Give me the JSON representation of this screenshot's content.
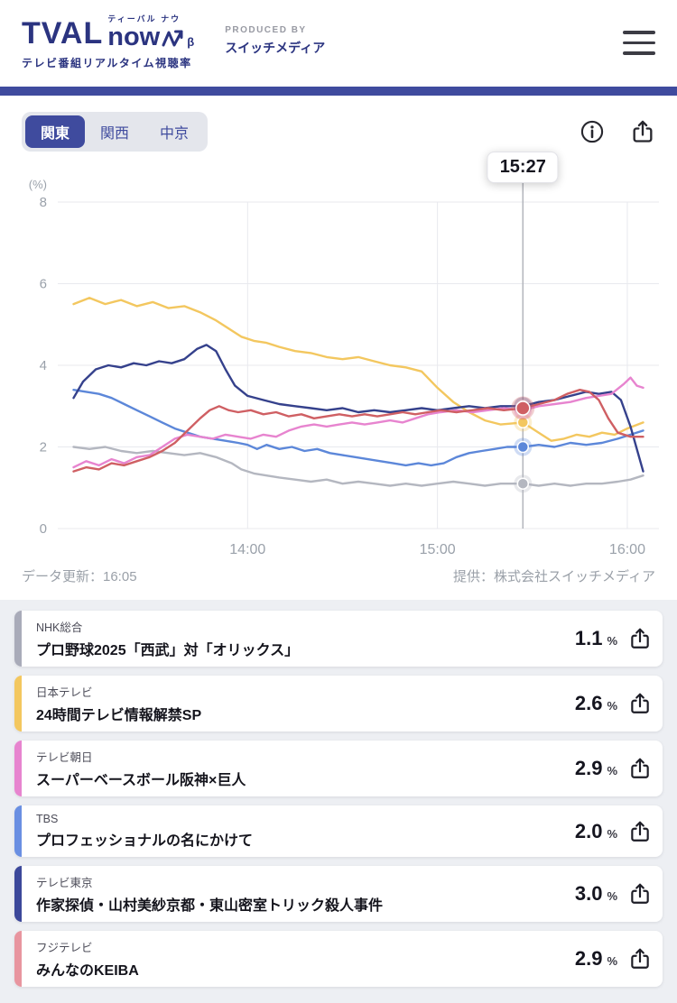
{
  "header": {
    "logo": {
      "main": "TVAL",
      "sub": "now",
      "beta": "β",
      "kana": "ティーバル ナウ",
      "tagline": "テレビ番組リアルタイム視聴率"
    },
    "produced_by": {
      "label": "PRODUCED BY",
      "name": "スイッチメディア"
    }
  },
  "region_tabs": [
    {
      "label": "関東",
      "active": true
    },
    {
      "label": "関西",
      "active": false
    },
    {
      "label": "中京",
      "active": false
    }
  ],
  "chart_meta": {
    "updated": "データ更新：16:05",
    "provider": "提供：株式会社スイッチメディア"
  },
  "chart_data": {
    "type": "line",
    "unit_label": "(%)",
    "ylim": [
      0,
      8
    ],
    "yticks": [
      0,
      2,
      4,
      6,
      8
    ],
    "x_range": [
      0,
      190
    ],
    "x_unit": "minutes_after_13:00",
    "grid": true,
    "xticks": [
      {
        "t": 60,
        "label": "14:00"
      },
      {
        "t": 120,
        "label": "15:00"
      },
      {
        "t": 180,
        "label": "16:00"
      }
    ],
    "cursor": {
      "t": 147,
      "label": "15:27"
    },
    "series": [
      {
        "name": "NHK総合",
        "color": "#b4b7c0",
        "cursor_value": 1.1,
        "highlight": false,
        "points": [
          [
            5,
            2.0
          ],
          [
            10,
            1.95
          ],
          [
            15,
            2.0
          ],
          [
            20,
            1.9
          ],
          [
            25,
            1.85
          ],
          [
            30,
            1.9
          ],
          [
            35,
            1.85
          ],
          [
            40,
            1.8
          ],
          [
            45,
            1.85
          ],
          [
            50,
            1.75
          ],
          [
            55,
            1.6
          ],
          [
            58,
            1.45
          ],
          [
            62,
            1.35
          ],
          [
            66,
            1.3
          ],
          [
            70,
            1.25
          ],
          [
            75,
            1.2
          ],
          [
            80,
            1.15
          ],
          [
            85,
            1.2
          ],
          [
            90,
            1.1
          ],
          [
            95,
            1.15
          ],
          [
            100,
            1.1
          ],
          [
            105,
            1.05
          ],
          [
            110,
            1.1
          ],
          [
            115,
            1.05
          ],
          [
            120,
            1.1
          ],
          [
            125,
            1.15
          ],
          [
            130,
            1.1
          ],
          [
            135,
            1.05
          ],
          [
            140,
            1.1
          ],
          [
            147,
            1.1
          ],
          [
            152,
            1.05
          ],
          [
            157,
            1.1
          ],
          [
            162,
            1.05
          ],
          [
            167,
            1.1
          ],
          [
            172,
            1.1
          ],
          [
            177,
            1.15
          ],
          [
            181,
            1.2
          ],
          [
            185,
            1.3
          ]
        ]
      },
      {
        "name": "TBS",
        "color": "#5c87d9",
        "cursor_value": 2.0,
        "highlight": false,
        "points": [
          [
            5,
            3.4
          ],
          [
            9,
            3.35
          ],
          [
            13,
            3.3
          ],
          [
            17,
            3.2
          ],
          [
            21,
            3.05
          ],
          [
            25,
            2.9
          ],
          [
            29,
            2.75
          ],
          [
            33,
            2.6
          ],
          [
            37,
            2.45
          ],
          [
            41,
            2.35
          ],
          [
            45,
            2.25
          ],
          [
            49,
            2.2
          ],
          [
            53,
            2.15
          ],
          [
            57,
            2.1
          ],
          [
            60,
            2.05
          ],
          [
            63,
            1.95
          ],
          [
            66,
            2.05
          ],
          [
            70,
            1.95
          ],
          [
            74,
            2.0
          ],
          [
            78,
            1.9
          ],
          [
            82,
            1.95
          ],
          [
            86,
            1.85
          ],
          [
            90,
            1.8
          ],
          [
            94,
            1.75
          ],
          [
            98,
            1.7
          ],
          [
            102,
            1.65
          ],
          [
            106,
            1.6
          ],
          [
            110,
            1.55
          ],
          [
            114,
            1.6
          ],
          [
            118,
            1.55
          ],
          [
            122,
            1.6
          ],
          [
            126,
            1.75
          ],
          [
            130,
            1.85
          ],
          [
            134,
            1.9
          ],
          [
            138,
            1.95
          ],
          [
            142,
            2.0
          ],
          [
            147,
            2.0
          ],
          [
            152,
            2.05
          ],
          [
            157,
            2.0
          ],
          [
            162,
            2.1
          ],
          [
            167,
            2.05
          ],
          [
            172,
            2.1
          ],
          [
            177,
            2.2
          ],
          [
            181,
            2.3
          ],
          [
            185,
            2.4
          ]
        ]
      },
      {
        "name": "日本テレビ",
        "color": "#f3c75f",
        "cursor_value": 2.6,
        "highlight": false,
        "points": [
          [
            5,
            5.5
          ],
          [
            10,
            5.65
          ],
          [
            15,
            5.5
          ],
          [
            20,
            5.6
          ],
          [
            25,
            5.45
          ],
          [
            30,
            5.55
          ],
          [
            35,
            5.4
          ],
          [
            40,
            5.45
          ],
          [
            45,
            5.3
          ],
          [
            50,
            5.1
          ],
          [
            55,
            4.85
          ],
          [
            58,
            4.7
          ],
          [
            62,
            4.6
          ],
          [
            66,
            4.55
          ],
          [
            70,
            4.45
          ],
          [
            75,
            4.35
          ],
          [
            80,
            4.3
          ],
          [
            85,
            4.2
          ],
          [
            90,
            4.15
          ],
          [
            95,
            4.2
          ],
          [
            100,
            4.1
          ],
          [
            105,
            4.0
          ],
          [
            110,
            3.95
          ],
          [
            115,
            3.85
          ],
          [
            120,
            3.45
          ],
          [
            125,
            3.1
          ],
          [
            130,
            2.85
          ],
          [
            135,
            2.65
          ],
          [
            140,
            2.55
          ],
          [
            147,
            2.6
          ],
          [
            152,
            2.35
          ],
          [
            156,
            2.15
          ],
          [
            160,
            2.2
          ],
          [
            164,
            2.3
          ],
          [
            168,
            2.25
          ],
          [
            172,
            2.35
          ],
          [
            176,
            2.3
          ],
          [
            180,
            2.45
          ],
          [
            185,
            2.6
          ]
        ]
      },
      {
        "name": "テレビ東京",
        "color": "#35418c",
        "cursor_value": 3.0,
        "highlight": false,
        "points": [
          [
            5,
            3.2
          ],
          [
            8,
            3.6
          ],
          [
            12,
            3.9
          ],
          [
            16,
            4.0
          ],
          [
            20,
            3.95
          ],
          [
            24,
            4.05
          ],
          [
            28,
            4.0
          ],
          [
            32,
            4.1
          ],
          [
            36,
            4.05
          ],
          [
            40,
            4.15
          ],
          [
            44,
            4.4
          ],
          [
            47,
            4.5
          ],
          [
            50,
            4.35
          ],
          [
            53,
            3.9
          ],
          [
            56,
            3.5
          ],
          [
            60,
            3.25
          ],
          [
            65,
            3.15
          ],
          [
            70,
            3.05
          ],
          [
            75,
            3.0
          ],
          [
            80,
            2.95
          ],
          [
            85,
            2.9
          ],
          [
            90,
            2.95
          ],
          [
            95,
            2.85
          ],
          [
            100,
            2.9
          ],
          [
            105,
            2.85
          ],
          [
            110,
            2.9
          ],
          [
            115,
            2.95
          ],
          [
            120,
            2.9
          ],
          [
            125,
            2.95
          ],
          [
            130,
            3.0
          ],
          [
            135,
            2.95
          ],
          [
            140,
            3.0
          ],
          [
            147,
            3.0
          ],
          [
            152,
            3.1
          ],
          [
            157,
            3.15
          ],
          [
            162,
            3.25
          ],
          [
            167,
            3.35
          ],
          [
            171,
            3.3
          ],
          [
            175,
            3.35
          ],
          [
            178,
            3.15
          ],
          [
            181,
            2.5
          ],
          [
            185,
            1.4
          ]
        ]
      },
      {
        "name": "テレビ朝日",
        "color": "#e784cf",
        "cursor_value": 2.9,
        "highlight": false,
        "points": [
          [
            5,
            1.5
          ],
          [
            9,
            1.65
          ],
          [
            13,
            1.55
          ],
          [
            17,
            1.7
          ],
          [
            21,
            1.6
          ],
          [
            25,
            1.75
          ],
          [
            29,
            1.8
          ],
          [
            33,
            2.0
          ],
          [
            37,
            2.2
          ],
          [
            41,
            2.3
          ],
          [
            45,
            2.25
          ],
          [
            49,
            2.2
          ],
          [
            53,
            2.3
          ],
          [
            57,
            2.25
          ],
          [
            61,
            2.2
          ],
          [
            65,
            2.3
          ],
          [
            69,
            2.25
          ],
          [
            73,
            2.4
          ],
          [
            77,
            2.5
          ],
          [
            81,
            2.55
          ],
          [
            85,
            2.5
          ],
          [
            89,
            2.55
          ],
          [
            93,
            2.6
          ],
          [
            97,
            2.55
          ],
          [
            101,
            2.6
          ],
          [
            105,
            2.65
          ],
          [
            109,
            2.6
          ],
          [
            113,
            2.7
          ],
          [
            117,
            2.8
          ],
          [
            121,
            2.85
          ],
          [
            126,
            2.9
          ],
          [
            131,
            2.85
          ],
          [
            136,
            2.9
          ],
          [
            141,
            2.95
          ],
          [
            147,
            2.9
          ],
          [
            152,
            3.0
          ],
          [
            157,
            3.05
          ],
          [
            162,
            3.1
          ],
          [
            167,
            3.2
          ],
          [
            171,
            3.25
          ],
          [
            175,
            3.3
          ],
          [
            179,
            3.55
          ],
          [
            181,
            3.7
          ],
          [
            183,
            3.5
          ],
          [
            185,
            3.45
          ]
        ]
      },
      {
        "name": "フジテレビ",
        "color": "#cf5f63",
        "cursor_value": 2.95,
        "highlight": true,
        "points": [
          [
            5,
            1.4
          ],
          [
            9,
            1.5
          ],
          [
            13,
            1.45
          ],
          [
            17,
            1.6
          ],
          [
            21,
            1.55
          ],
          [
            25,
            1.65
          ],
          [
            29,
            1.75
          ],
          [
            33,
            1.9
          ],
          [
            37,
            2.1
          ],
          [
            41,
            2.4
          ],
          [
            45,
            2.7
          ],
          [
            48,
            2.9
          ],
          [
            51,
            3.0
          ],
          [
            54,
            2.9
          ],
          [
            57,
            2.85
          ],
          [
            61,
            2.9
          ],
          [
            65,
            2.8
          ],
          [
            69,
            2.85
          ],
          [
            73,
            2.75
          ],
          [
            77,
            2.8
          ],
          [
            81,
            2.7
          ],
          [
            85,
            2.75
          ],
          [
            89,
            2.8
          ],
          [
            93,
            2.75
          ],
          [
            97,
            2.8
          ],
          [
            101,
            2.75
          ],
          [
            105,
            2.8
          ],
          [
            109,
            2.85
          ],
          [
            113,
            2.8
          ],
          [
            117,
            2.85
          ],
          [
            121,
            2.9
          ],
          [
            126,
            2.85
          ],
          [
            131,
            2.9
          ],
          [
            136,
            2.95
          ],
          [
            141,
            2.9
          ],
          [
            147,
            2.95
          ],
          [
            152,
            3.05
          ],
          [
            157,
            3.15
          ],
          [
            161,
            3.3
          ],
          [
            165,
            3.4
          ],
          [
            168,
            3.35
          ],
          [
            171,
            3.15
          ],
          [
            174,
            2.7
          ],
          [
            177,
            2.35
          ],
          [
            181,
            2.25
          ],
          [
            185,
            2.25
          ]
        ]
      }
    ]
  },
  "programs": [
    {
      "station": "NHK総合",
      "title": "プロ野球2025「西武」対「オリックス」",
      "value": "1.1",
      "unit": "%",
      "color": "#a9abb9"
    },
    {
      "station": "日本テレビ",
      "title": "24時間テレビ情報解禁SP",
      "value": "2.6",
      "unit": "%",
      "color": "#f3c75f"
    },
    {
      "station": "テレビ朝日",
      "title": "スーパーベースボール阪神×巨人",
      "value": "2.9",
      "unit": "%",
      "color": "#e784cf"
    },
    {
      "station": "TBS",
      "title": "プロフェッショナルの名にかけて",
      "value": "2.0",
      "unit": "%",
      "color": "#6a8fe2"
    },
    {
      "station": "テレビ東京",
      "title": "作家探偵・山村美紗京都・東山密室トリック殺人事件",
      "value": "3.0",
      "unit": "%",
      "color": "#3c489a"
    },
    {
      "station": "フジテレビ",
      "title": "みんなのKEIBA",
      "value": "2.9",
      "unit": "%",
      "color": "#e8959f"
    }
  ]
}
